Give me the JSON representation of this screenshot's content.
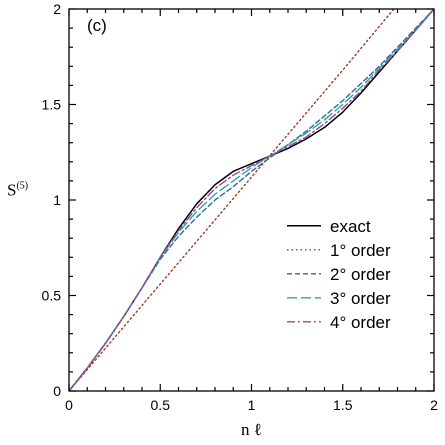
{
  "chart_data": {
    "type": "line",
    "panel_label": "(c)",
    "xlabel": "n ℓ",
    "ylabel_main": "S",
    "ylabel_sup": "(5)",
    "xlim": [
      0,
      2
    ],
    "ylim": [
      0,
      2
    ],
    "xticks": [
      0,
      0.5,
      1,
      1.5,
      2
    ],
    "yticks": [
      0,
      0.5,
      1,
      1.5,
      2
    ],
    "xtick_labels": [
      "0",
      "0.5",
      "1",
      "1.5",
      "2"
    ],
    "ytick_labels": [
      "0",
      "0.5",
      "1",
      "1.5",
      "2"
    ],
    "grid": false,
    "legend_position": "lower-right",
    "series": [
      {
        "name": "exact",
        "color": "#000000",
        "dash": "solid",
        "x": [
          0,
          0.1,
          0.2,
          0.3,
          0.4,
          0.5,
          0.6,
          0.7,
          0.8,
          0.9,
          1.0,
          1.1,
          1.2,
          1.3,
          1.4,
          1.5,
          1.6,
          1.7,
          1.8,
          1.9,
          2.0
        ],
        "y": [
          0,
          0.12,
          0.25,
          0.39,
          0.54,
          0.7,
          0.85,
          0.98,
          1.08,
          1.15,
          1.19,
          1.23,
          1.27,
          1.32,
          1.38,
          1.46,
          1.56,
          1.67,
          1.78,
          1.89,
          2.0
        ]
      },
      {
        "name": "1° order",
        "color": "#a33a1f",
        "dash": "dotted",
        "x": [
          0,
          0.5,
          1.0,
          1.5,
          1.78
        ],
        "y": [
          0,
          0.56,
          1.12,
          1.68,
          2.0
        ]
      },
      {
        "name": "2° order",
        "color": "#2f6b96",
        "dash": "dashed-short",
        "x": [
          0,
          0.1,
          0.2,
          0.3,
          0.4,
          0.5,
          0.6,
          0.7,
          0.8,
          0.9,
          1.0,
          1.1,
          1.2,
          1.3,
          1.4,
          1.5,
          1.6,
          1.7,
          1.8,
          1.9,
          2.0
        ],
        "y": [
          0,
          0.12,
          0.25,
          0.39,
          0.54,
          0.69,
          0.81,
          0.91,
          1.0,
          1.07,
          1.15,
          1.22,
          1.29,
          1.36,
          1.44,
          1.52,
          1.61,
          1.7,
          1.8,
          1.9,
          2.0
        ]
      },
      {
        "name": "3° order",
        "color": "#2aa9a3",
        "dash": "dashed-long",
        "x": [
          0,
          0.1,
          0.2,
          0.3,
          0.4,
          0.5,
          0.6,
          0.7,
          0.8,
          0.9,
          1.0,
          1.1,
          1.2,
          1.3,
          1.4,
          1.5,
          1.6,
          1.7,
          1.8,
          1.9,
          2.0
        ],
        "y": [
          0,
          0.12,
          0.25,
          0.39,
          0.54,
          0.7,
          0.83,
          0.94,
          1.03,
          1.1,
          1.17,
          1.23,
          1.29,
          1.35,
          1.42,
          1.5,
          1.59,
          1.69,
          1.79,
          1.89,
          2.0
        ]
      },
      {
        "name": "4° order",
        "color": "#a0449a",
        "dash": "dash-dot",
        "x": [
          0,
          0.1,
          0.2,
          0.3,
          0.4,
          0.5,
          0.6,
          0.7,
          0.8,
          0.9,
          1.0,
          1.1,
          1.2,
          1.3,
          1.4,
          1.5,
          1.6,
          1.7,
          1.8,
          1.9,
          2.0
        ],
        "y": [
          0,
          0.12,
          0.25,
          0.39,
          0.54,
          0.7,
          0.84,
          0.96,
          1.06,
          1.13,
          1.18,
          1.23,
          1.28,
          1.33,
          1.4,
          1.48,
          1.57,
          1.68,
          1.78,
          1.89,
          2.0
        ]
      }
    ]
  }
}
